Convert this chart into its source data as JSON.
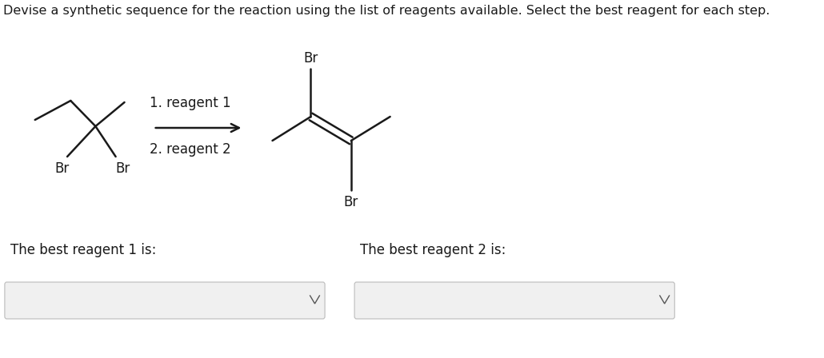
{
  "title": "Devise a synthetic sequence for the reaction using the list of reagents available. Select the best reagent for each step.",
  "reagent1_label": "1. reagent 1",
  "reagent2_label": "2. reagent 2",
  "label_reagent1_text": "The best reagent 1 is:",
  "label_reagent2_text": "The best reagent 2 is:",
  "bg_color": "#ffffff",
  "line_color": "#1a1a1a",
  "text_color": "#1a1a1a",
  "title_fontsize": 11.5,
  "label_fontsize": 12,
  "reagent_fontsize": 12,
  "br_fontsize": 12,
  "dropdown_bg": "#f0f0f0",
  "dropdown_border": "#bbbbbb",
  "lw": 1.8
}
